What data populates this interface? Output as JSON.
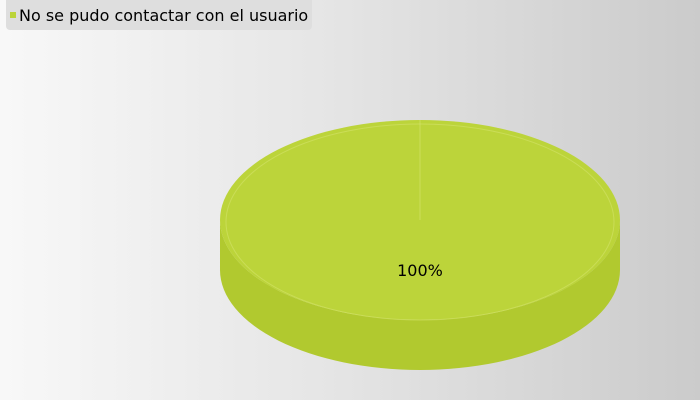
{
  "chart_data": {
    "type": "pie",
    "style": "3d",
    "slices": [
      {
        "label": "No se pudo contactar con el usuario",
        "value": 100,
        "display": "100%",
        "color": "#bcd43a"
      }
    ],
    "legend": {
      "placement": "top-left"
    }
  },
  "colors": {
    "slice_top": "#bcd43a",
    "slice_side": "#b1c92f",
    "slice_outline": "#d3e36a"
  }
}
